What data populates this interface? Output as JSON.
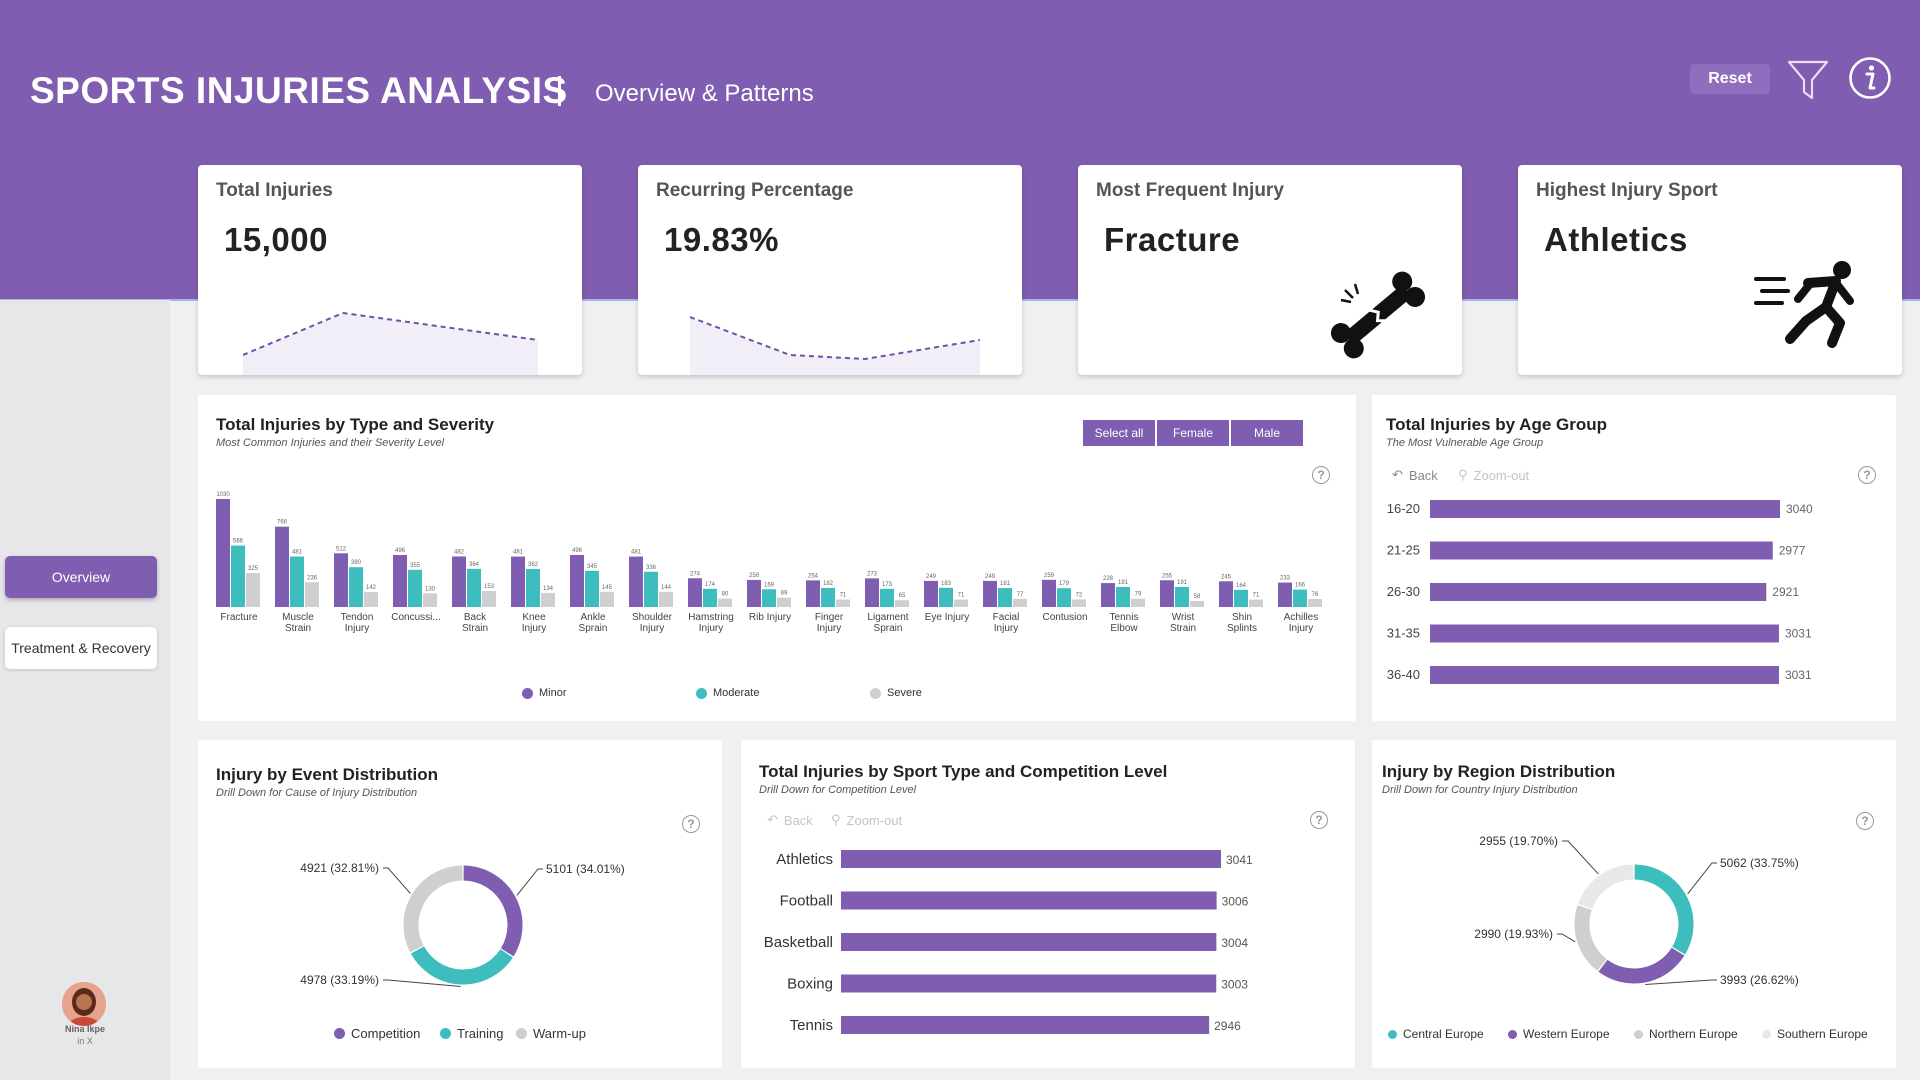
{
  "header": {
    "title": "SPORTS INJURIES ANALYSIS",
    "subtitle": "Overview & Patterns",
    "reset_label": "Reset"
  },
  "nav": {
    "overview_label": "Overview",
    "treatment_label": "Treatment & Recovery"
  },
  "author": {
    "name": "Nina Ikpe",
    "social": "in  X"
  },
  "kpis": {
    "total": {
      "title": "Total Injuries",
      "value": "15,000"
    },
    "recurring": {
      "title": "Recurring Percentage",
      "value": "19.83%"
    },
    "injury": {
      "title": "Most Frequent Injury",
      "value": "Fracture",
      "icon": "broken-bone-icon"
    },
    "sport": {
      "title": "Highest Injury Sport",
      "value": "Athletics",
      "icon": "running-person-icon"
    }
  },
  "type_severity": {
    "title": "Total Injuries by Type and Severity",
    "subtitle": "Most Common Injuries and their Severity Level",
    "segments": [
      "Select all",
      "Female",
      "Male"
    ],
    "help": "?"
  },
  "age_group": {
    "title": "Total Injuries by Age Group",
    "subtitle": "The Most Vulnerable Age Group",
    "back_label": "Back",
    "zoom_label": "Zoom-out",
    "help": "?"
  },
  "event": {
    "title": "Injury by Event Distribution",
    "subtitle": "Drill Down for Cause of Injury Distribution",
    "help": "?"
  },
  "sport_level": {
    "title": "Total Injuries by Sport Type and Competition Level",
    "subtitle": "Drill Down for Competition Level",
    "back_label": "Back",
    "zoom_label": "Zoom-out",
    "help": "?"
  },
  "region": {
    "title": "Injury by Region Distribution",
    "subtitle": "Drill Down for Country Injury Distribution",
    "help": "?"
  },
  "colors": {
    "purple": "#7f5db0",
    "teal": "#3dbdbd",
    "grey": "#cfcfcf",
    "lightgrey": "#e8e8e8"
  },
  "chart_data": [
    {
      "type": "bar",
      "title": "Total Injuries by Type and Severity",
      "categories": [
        [
          "Fracture"
        ],
        [
          "Muscle",
          "Strain"
        ],
        [
          "Tendon",
          "Injury"
        ],
        [
          "Concussi..."
        ],
        [
          "Back",
          "Strain"
        ],
        [
          "Knee",
          "Injury"
        ],
        [
          "Ankle",
          "Sprain"
        ],
        [
          "Shoulder",
          "Injury"
        ],
        [
          "Hamstring",
          "Injury"
        ],
        [
          "Rib Injury"
        ],
        [
          "Finger",
          "Injury"
        ],
        [
          "Ligament",
          "Sprain"
        ],
        [
          "Eye Injury"
        ],
        [
          "Facial",
          "Injury"
        ],
        [
          "Contusion"
        ],
        [
          "Tennis",
          "Elbow"
        ],
        [
          "Wrist",
          "Strain"
        ],
        [
          "Shin",
          "Splints"
        ],
        [
          "Achilles",
          "Injury"
        ]
      ],
      "series": [
        {
          "name": "Minor",
          "values": [
            1030,
            766,
            512,
            496,
            482,
            481,
            496,
            481,
            274,
            258,
            254,
            273,
            249,
            249,
            259,
            228,
            255,
            245,
            233
          ]
        },
        {
          "name": "Moderate",
          "values": [
            586,
            481,
            380,
            355,
            364,
            362,
            345,
            336,
            174,
            169,
            182,
            173,
            183,
            181,
            179,
            191,
            191,
            164,
            166
          ]
        },
        {
          "name": "Severe",
          "values": [
            325,
            236,
            142,
            130,
            153,
            134,
            145,
            144,
            80,
            89,
            71,
            65,
            71,
            77,
            72,
            79,
            58,
            71,
            76
          ]
        }
      ],
      "legend": "bottom"
    },
    {
      "type": "bar",
      "orientation": "horizontal",
      "title": "Total Injuries by Age Group",
      "categories": [
        "16-20",
        "21-25",
        "26-30",
        "31-35",
        "36-40"
      ],
      "values": [
        3040,
        2977,
        2921,
        3031,
        3031
      ]
    },
    {
      "type": "pie",
      "donut": true,
      "title": "Injury by Event Distribution",
      "categories": [
        "Competition",
        "Training",
        "Warm-up"
      ],
      "values": [
        5101,
        4978,
        4921
      ],
      "labels": [
        "5101 (34.01%)",
        "4978 (33.19%)",
        "4921 (32.81%)"
      ],
      "legend": "bottom"
    },
    {
      "type": "bar",
      "orientation": "horizontal",
      "title": "Total Injuries by Sport Type and Competition Level",
      "categories": [
        "Athletics",
        "Football",
        "Basketball",
        "Boxing",
        "Tennis"
      ],
      "values": [
        3041,
        3006,
        3004,
        3003,
        2946
      ]
    },
    {
      "type": "pie",
      "donut": true,
      "title": "Injury by Region Distribution",
      "categories": [
        "Central Europe",
        "Western Europe",
        "Northern Europe",
        "Southern Europe"
      ],
      "values": [
        5062,
        3993,
        2990,
        2955
      ],
      "labels": [
        "5062 (33.75%)",
        "3993 (26.62%)",
        "2990 (19.93%)",
        "2955 (19.70%)"
      ],
      "legend": "bottom"
    }
  ]
}
